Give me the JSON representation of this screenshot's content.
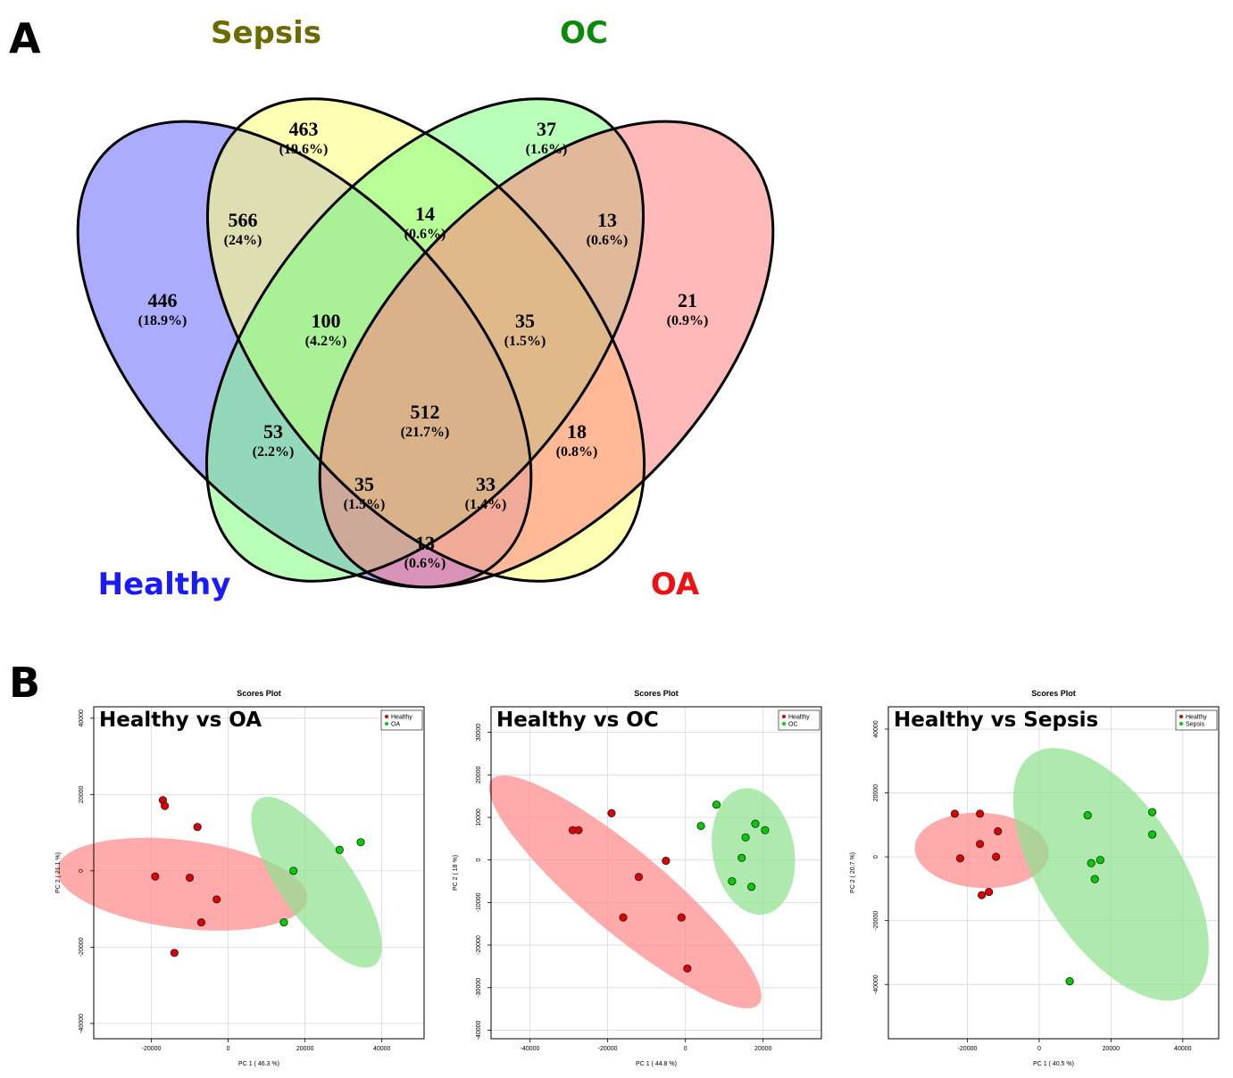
{
  "panel_a_letter": "A",
  "panel_b_letter": "B",
  "venn": {
    "sets": [
      {
        "key": "healthy",
        "label": "Healthy",
        "color": "#1a1aff",
        "fill": "#8c8cff"
      },
      {
        "key": "sepsis",
        "label": "Sepsis",
        "color": "#6b6b00",
        "fill": "#ffff80"
      },
      {
        "key": "oc",
        "label": "OC",
        "color": "#0a8a0a",
        "fill": "#80ff80"
      },
      {
        "key": "oa",
        "label": "OA",
        "color": "#ee1111",
        "fill": "#ff8080"
      }
    ],
    "regions": [
      {
        "sets": [
          "sepsis"
        ],
        "count": "463",
        "pct": "(19.6%)"
      },
      {
        "sets": [
          "oc"
        ],
        "count": "37",
        "pct": "(1.6%)"
      },
      {
        "sets": [
          "healthy",
          "sepsis"
        ],
        "count": "566",
        "pct": "(24%)"
      },
      {
        "sets": [
          "sepsis",
          "oc"
        ],
        "count": "14",
        "pct": "(0.6%)"
      },
      {
        "sets": [
          "oc",
          "oa"
        ],
        "count": "13",
        "pct": "(0.6%)"
      },
      {
        "sets": [
          "healthy"
        ],
        "count": "446",
        "pct": "(18.9%)"
      },
      {
        "sets": [
          "healthy",
          "sepsis",
          "oc"
        ],
        "count": "100",
        "pct": "(4.2%)"
      },
      {
        "sets": [
          "sepsis",
          "oc",
          "oa"
        ],
        "count": "35",
        "pct": "(1.5%)"
      },
      {
        "sets": [
          "oa"
        ],
        "count": "21",
        "pct": "(0.9%)"
      },
      {
        "sets": [
          "healthy",
          "sepsis",
          "oc",
          "oa"
        ],
        "count": "512",
        "pct": "(21.7%)"
      },
      {
        "sets": [
          "healthy",
          "oc"
        ],
        "count": "53",
        "pct": "(2.2%)"
      },
      {
        "sets": [
          "sepsis",
          "oa"
        ],
        "count": "18",
        "pct": "(0.8%)"
      },
      {
        "sets": [
          "healthy",
          "oc",
          "oa"
        ],
        "count": "35",
        "pct": "(1.5%)"
      },
      {
        "sets": [
          "healthy",
          "sepsis",
          "oa"
        ],
        "count": "33",
        "pct": "(1.4%)"
      },
      {
        "sets": [
          "healthy",
          "oa"
        ],
        "count": "13",
        "pct": "(0.6%)"
      }
    ]
  },
  "chart_data": [
    {
      "type": "scatter",
      "title": "Scores Plot",
      "panel_title": "Healthy vs OA",
      "xlabel": "PC 1 ( 46.3 %)",
      "ylabel": "PC 2 ( 21.1 %)",
      "xlim": [
        -35000,
        51000
      ],
      "ylim": [
        -44000,
        43000
      ],
      "xticks": [
        -20000,
        0,
        20000,
        40000
      ],
      "yticks": [
        -40000,
        -20000,
        0,
        20000,
        40000
      ],
      "grid": true,
      "legend_position": "top-right",
      "series": [
        {
          "name": "Healthy",
          "color": "#dd0000",
          "ellipse_color": "#ff8a8a",
          "points": [
            [
              -17000,
              18500
            ],
            [
              -16500,
              17000
            ],
            [
              -8000,
              11500
            ],
            [
              -19000,
              -1500
            ],
            [
              -10000,
              -1800
            ],
            [
              -3000,
              -7500
            ],
            [
              -7000,
              -13500
            ],
            [
              -14000,
              -21500
            ]
          ]
        },
        {
          "name": "OA",
          "color": "#00cc00",
          "ellipse_color": "#8fe08f",
          "points": [
            [
              17000,
              0
            ],
            [
              29000,
              5500
            ],
            [
              34500,
              7500
            ],
            [
              14500,
              -13500
            ]
          ]
        }
      ]
    },
    {
      "type": "scatter",
      "title": "Scores Plot",
      "panel_title": "Healthy vs OC",
      "xlabel": "PC 1 ( 44.8 %)",
      "ylabel": "PC 2 ( 18 %)",
      "xlim": [
        -50000,
        35000
      ],
      "ylim": [
        -42000,
        36000
      ],
      "xticks": [
        -40000,
        -20000,
        0,
        20000
      ],
      "yticks": [
        -40000,
        -30000,
        -20000,
        -10000,
        0,
        10000,
        20000,
        30000
      ],
      "grid": true,
      "legend_position": "top-right",
      "series": [
        {
          "name": "Healthy",
          "color": "#dd0000",
          "ellipse_color": "#ff8a8a",
          "points": [
            [
              -29000,
              7000
            ],
            [
              -27500,
              7000
            ],
            [
              -19000,
              11000
            ],
            [
              -12000,
              -4000
            ],
            [
              -5000,
              -200
            ],
            [
              -16000,
              -13500
            ],
            [
              -1000,
              -13500
            ],
            [
              500,
              -25500
            ]
          ]
        },
        {
          "name": "OC",
          "color": "#00cc00",
          "ellipse_color": "#8fe08f",
          "points": [
            [
              8000,
              13000
            ],
            [
              4000,
              8000
            ],
            [
              18000,
              8500
            ],
            [
              20500,
              7000
            ],
            [
              15500,
              5300
            ],
            [
              14500,
              500
            ],
            [
              12000,
              -5000
            ],
            [
              17000,
              -6300
            ]
          ]
        }
      ]
    },
    {
      "type": "scatter",
      "title": "Scores Plot",
      "panel_title": "Healthy vs Sepsis",
      "xlabel": "PC 1 ( 40.5 %)",
      "ylabel": "PC 2 ( 20.7 %)",
      "xlim": [
        -42000,
        50000
      ],
      "ylim": [
        -57000,
        47000
      ],
      "xticks": [
        -20000,
        0,
        20000,
        40000
      ],
      "yticks": [
        -40000,
        -20000,
        0,
        20000,
        40000
      ],
      "grid": true,
      "legend_position": "top-right",
      "series": [
        {
          "name": "Healthy",
          "color": "#dd0000",
          "ellipse_color": "#ff8a8a",
          "points": [
            [
              -23500,
              13500
            ],
            [
              -22000,
              -500
            ],
            [
              -16500,
              13500
            ],
            [
              -16500,
              4000
            ],
            [
              -11500,
              8000
            ],
            [
              -12000,
              0
            ],
            [
              -16000,
              -12000
            ],
            [
              -14000,
              -11000
            ]
          ]
        },
        {
          "name": "Sepsis",
          "color": "#00cc00",
          "ellipse_color": "#8fe08f",
          "points": [
            [
              13500,
              13000
            ],
            [
              14500,
              -2000
            ],
            [
              17000,
              -1000
            ],
            [
              15500,
              -7000
            ],
            [
              31500,
              14000
            ],
            [
              31500,
              7000
            ],
            [
              8500,
              -39000
            ]
          ]
        }
      ]
    }
  ]
}
